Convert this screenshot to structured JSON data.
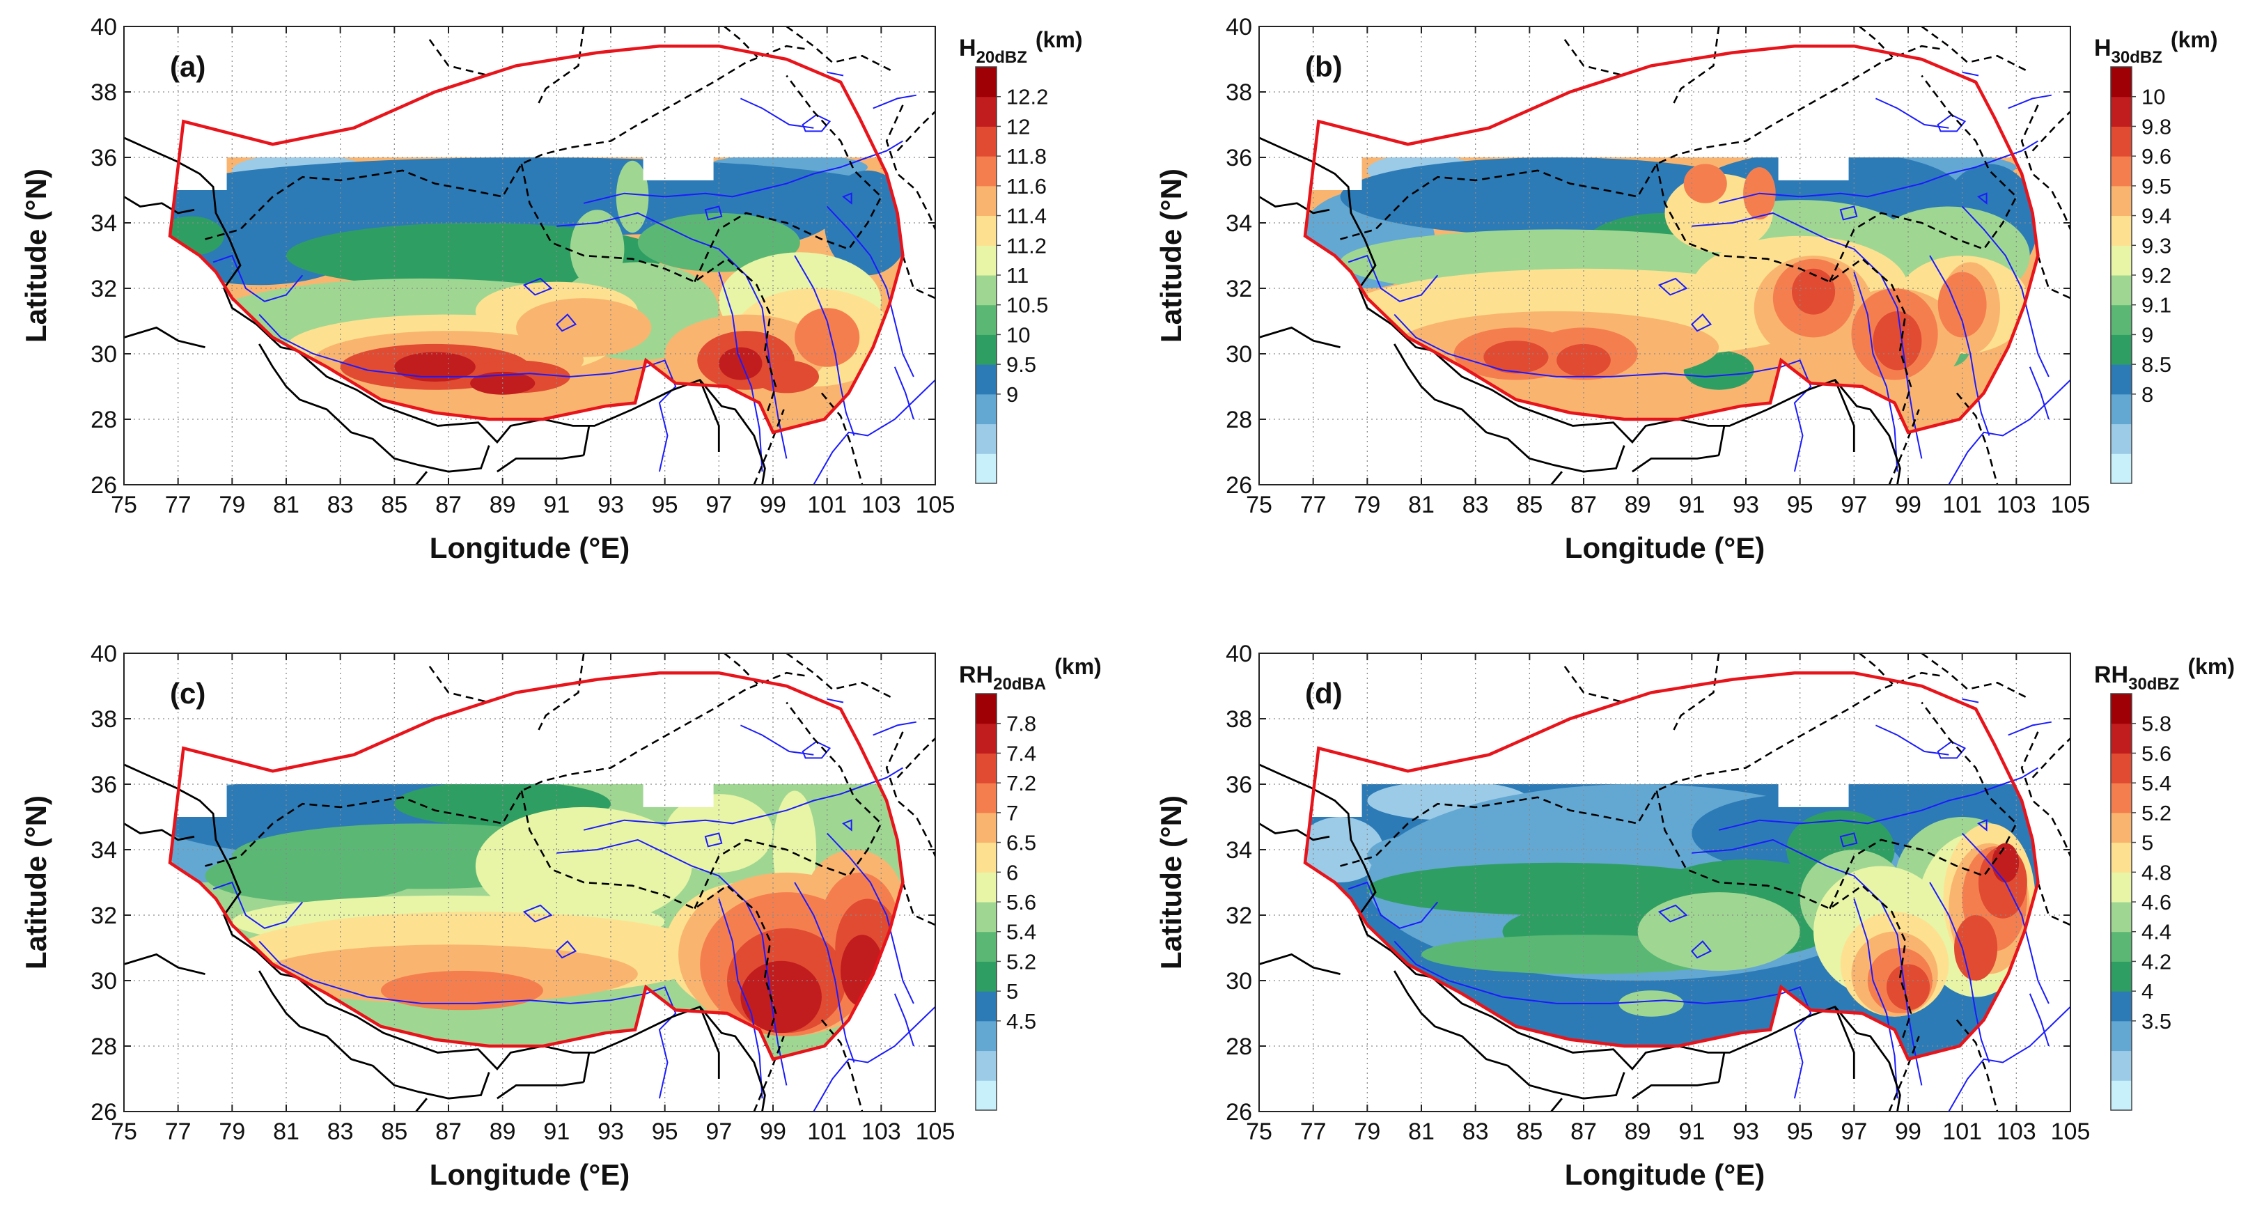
{
  "figure": {
    "xlabel": "Longitude (°E)",
    "ylabel": "Latitude (°N)",
    "x_ticks": [
      "75",
      "77",
      "79",
      "81",
      "83",
      "85",
      "87",
      "89",
      "91",
      "93",
      "95",
      "97",
      "99",
      "101",
      "103",
      "105"
    ],
    "y_ticks": [
      "26",
      "28",
      "30",
      "32",
      "34",
      "36",
      "38",
      "40"
    ],
    "xlim": [
      75,
      105
    ],
    "ylim": [
      26,
      40
    ],
    "grid": true
  },
  "panels": [
    {
      "id": "a",
      "label": "(a)",
      "colorbar_title_main": "H",
      "colorbar_title_sub": "20dBZ",
      "colorbar_unit": "(km)",
      "colorbar_ticks": [
        "12.2",
        "12",
        "11.8",
        "11.6",
        "11.4",
        "11.2",
        "11",
        "10.5",
        "10",
        "9.5",
        "9"
      ],
      "colors": [
        "#c8f0fb",
        "#9ccbe7",
        "#63a8d2",
        "#2c7bb6",
        "#2f9e63",
        "#5ab874",
        "#9fd792",
        "#e8f4a6",
        "#fde190",
        "#f9b570",
        "#f57e4f",
        "#e04b32",
        "#c11c1e",
        "#9e0005"
      ]
    },
    {
      "id": "b",
      "label": "(b)",
      "colorbar_title_main": "H",
      "colorbar_title_sub": "30dBZ",
      "colorbar_unit": "(km)",
      "colorbar_ticks": [
        "10",
        "9.8",
        "9.6",
        "9.5",
        "9.4",
        "9.3",
        "9.2",
        "9.1",
        "9",
        "8.5",
        "8"
      ],
      "colors": [
        "#c8f0fb",
        "#9ccbe7",
        "#63a8d2",
        "#2c7bb6",
        "#2f9e63",
        "#5ab874",
        "#9fd792",
        "#e8f4a6",
        "#fde190",
        "#f9b570",
        "#f57e4f",
        "#e04b32",
        "#c11c1e",
        "#9e0005"
      ]
    },
    {
      "id": "c",
      "label": "(c)",
      "colorbar_title_main": "RH",
      "colorbar_title_sub": "20dBA",
      "colorbar_unit": "(km)",
      "colorbar_ticks": [
        "7.8",
        "7.4",
        "7.2",
        "7",
        "6.5",
        "6",
        "5.6",
        "5.4",
        "5.2",
        "5",
        "4.5"
      ],
      "colors": [
        "#c8f0fb",
        "#9ccbe7",
        "#63a8d2",
        "#2c7bb6",
        "#2f9e63",
        "#5ab874",
        "#9fd792",
        "#e8f4a6",
        "#fde190",
        "#f9b570",
        "#f57e4f",
        "#e04b32",
        "#c11c1e",
        "#9e0005"
      ]
    },
    {
      "id": "d",
      "label": "(d)",
      "colorbar_title_main": "RH",
      "colorbar_title_sub": "30dBZ",
      "colorbar_unit": "(km)",
      "colorbar_ticks": [
        "5.8",
        "5.6",
        "5.4",
        "5.2",
        "5",
        "4.8",
        "4.6",
        "4.4",
        "4.2",
        "4",
        "3.5"
      ],
      "colors": [
        "#c8f0fb",
        "#9ccbe7",
        "#63a8d2",
        "#2c7bb6",
        "#2f9e63",
        "#5ab874",
        "#9fd792",
        "#e8f4a6",
        "#fde190",
        "#f9b570",
        "#f57e4f",
        "#e04b32",
        "#c11c1e",
        "#9e0005"
      ]
    }
  ],
  "boundary_color": "#e8141b",
  "river_color": "#1b1bff"
}
